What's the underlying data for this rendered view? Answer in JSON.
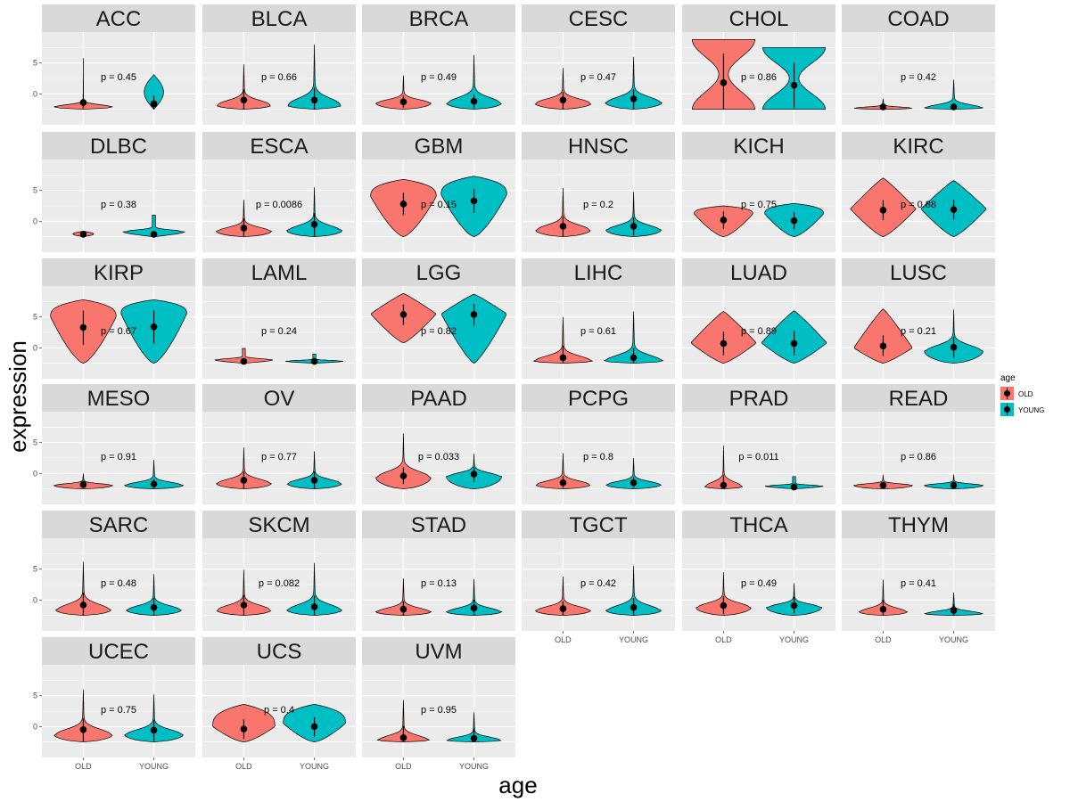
{
  "chart_data": {
    "type": "violin",
    "xlabel": "age",
    "ylabel": "expression",
    "categories": [
      "OLD",
      "YOUNG"
    ],
    "y_ticks": [
      0,
      5
    ],
    "ylim": [
      -5,
      10
    ],
    "legend": {
      "title": "age",
      "position": "right",
      "entries": [
        {
          "label": "OLD",
          "color": "#F8766D"
        },
        {
          "label": "YOUNG",
          "color": "#00BFC4"
        }
      ]
    },
    "colors": {
      "OLD": "#F8766D",
      "YOUNG": "#00BFC4",
      "panel_bg": "#EBEBEB",
      "strip_bg": "#D9D9D9",
      "grid": "#FFFFFF"
    },
    "panels": [
      {
        "name": "ACC",
        "p": "p = 0.45",
        "old": {
          "min": -2.5,
          "max": 5.8,
          "mean": -1.4,
          "sd_low": -2.3,
          "sd_high": 0.0,
          "mode": -2.3,
          "width": 0.85,
          "shape": "spike"
        },
        "young": {
          "min": -2.5,
          "max": 3.1,
          "mean": -1.6,
          "sd_low": -2.4,
          "sd_high": -0.3,
          "mode": -1.6,
          "width": 0.28,
          "shape": "spindle"
        }
      },
      {
        "name": "BLCA",
        "p": "p = 0.66",
        "old": {
          "min": -2.5,
          "max": 4.8,
          "mean": -1.0,
          "sd_low": -2.5,
          "sd_high": 0.7,
          "mode": -1.8,
          "width": 0.8,
          "shape": "skew"
        },
        "young": {
          "min": -2.5,
          "max": 8.0,
          "mean": -1.0,
          "sd_low": -2.5,
          "sd_high": 1.0,
          "mode": -1.8,
          "width": 0.8,
          "shape": "skew"
        }
      },
      {
        "name": "BRCA",
        "p": "p = 0.49",
        "old": {
          "min": -2.5,
          "max": 3.0,
          "mean": -1.3,
          "sd_low": -2.2,
          "sd_high": -0.3,
          "mode": -1.5,
          "width": 0.8,
          "shape": "skew"
        },
        "young": {
          "min": -2.5,
          "max": 6.3,
          "mean": -1.2,
          "sd_low": -2.3,
          "sd_high": -0.1,
          "mode": -1.5,
          "width": 0.8,
          "shape": "skew"
        }
      },
      {
        "name": "CESC",
        "p": "p = 0.47",
        "old": {
          "min": -2.5,
          "max": 4.2,
          "mean": -1.0,
          "sd_low": -2.4,
          "sd_high": 0.3,
          "mode": -1.5,
          "width": 0.82,
          "shape": "skew"
        },
        "young": {
          "min": -2.5,
          "max": 6.0,
          "mean": -0.8,
          "sd_low": -2.4,
          "sd_high": 0.7,
          "mode": -1.4,
          "width": 0.82,
          "shape": "skew"
        }
      },
      {
        "name": "CHOL",
        "p": "p = 0.86",
        "old": {
          "min": -2.5,
          "max": 8.8,
          "mean": 1.8,
          "sd_low": -2.5,
          "sd_high": 6.5,
          "mode": 1.5,
          "width": 0.95,
          "shape": "hourglass"
        },
        "young": {
          "min": -2.5,
          "max": 7.5,
          "mean": 1.4,
          "sd_low": -2.3,
          "sd_high": 5.0,
          "mode": 1.0,
          "width": 0.95,
          "shape": "hourglass"
        }
      },
      {
        "name": "COAD",
        "p": "p = 0.42",
        "old": {
          "min": -2.5,
          "max": -0.8,
          "mean": -2.1,
          "sd_low": -2.4,
          "sd_high": -1.8,
          "mode": -2.3,
          "width": 0.85,
          "shape": "skew"
        },
        "young": {
          "min": -2.5,
          "max": 2.3,
          "mean": -2.1,
          "sd_low": -2.4,
          "sd_high": -1.5,
          "mode": -2.3,
          "width": 0.85,
          "shape": "skew"
        }
      },
      {
        "name": "DLBC",
        "p": "p = 0.38",
        "old": {
          "min": -2.5,
          "max": -1.6,
          "mean": -2.1,
          "sd_low": -2.3,
          "sd_high": -1.9,
          "mode": -2.1,
          "width": 0.3,
          "shape": "spindle"
        },
        "young": {
          "min": -2.5,
          "max": 1.0,
          "mean": -2.1,
          "sd_low": -2.4,
          "sd_high": -1.7,
          "mode": -2.4,
          "width": 0.9,
          "shape": "flat"
        }
      },
      {
        "name": "ESCA",
        "p": "p = 0.0086",
        "old": {
          "min": -2.5,
          "max": 3.5,
          "mean": -1.1,
          "sd_low": -2.4,
          "sd_high": 0.5,
          "mode": -1.6,
          "width": 0.8,
          "shape": "skew"
        },
        "young": {
          "min": -2.5,
          "max": 5.5,
          "mean": -0.5,
          "sd_low": -2.4,
          "sd_high": 1.3,
          "mode": -1.5,
          "width": 0.8,
          "shape": "skew"
        }
      },
      {
        "name": "GBM",
        "p": "p = 0.15",
        "old": {
          "min": -2.5,
          "max": 6.8,
          "mean": 2.8,
          "sd_low": 1.0,
          "sd_high": 4.6,
          "mode": 4.0,
          "width": 0.95,
          "shape": "top"
        },
        "young": {
          "min": -2.5,
          "max": 7.3,
          "mean": 3.3,
          "sd_low": 1.4,
          "sd_high": 5.3,
          "mode": 4.3,
          "width": 0.95,
          "shape": "top"
        }
      },
      {
        "name": "HNSC",
        "p": "p = 0.2",
        "old": {
          "min": -2.5,
          "max": 5.4,
          "mean": -0.8,
          "sd_low": -2.4,
          "sd_high": 0.8,
          "mode": -1.4,
          "width": 0.8,
          "shape": "skew"
        },
        "young": {
          "min": -2.5,
          "max": 4.8,
          "mean": -0.8,
          "sd_low": -2.3,
          "sd_high": 0.6,
          "mode": -1.4,
          "width": 0.8,
          "shape": "skew"
        }
      },
      {
        "name": "KICH",
        "p": "p = 0.75",
        "old": {
          "min": -2.5,
          "max": 2.5,
          "mean": 0.2,
          "sd_low": -1.2,
          "sd_high": 1.6,
          "mode": 1.2,
          "width": 0.85,
          "shape": "top"
        },
        "young": {
          "min": -2.5,
          "max": 2.9,
          "mean": 0.1,
          "sd_low": -1.3,
          "sd_high": 1.5,
          "mode": 1.2,
          "width": 0.85,
          "shape": "top"
        }
      },
      {
        "name": "KIRC",
        "p": "p = 0.88",
        "old": {
          "min": -2.5,
          "max": 7.0,
          "mean": 1.8,
          "sd_low": 0.2,
          "sd_high": 3.4,
          "mode": 2.0,
          "width": 0.95,
          "shape": "diamond"
        },
        "young": {
          "min": -2.5,
          "max": 6.6,
          "mean": 1.9,
          "sd_low": 0.3,
          "sd_high": 3.5,
          "mode": 2.0,
          "width": 0.95,
          "shape": "diamond"
        }
      },
      {
        "name": "KIRP",
        "p": "p = 0.67",
        "old": {
          "min": -2.5,
          "max": 7.8,
          "mean": 3.3,
          "sd_low": 0.5,
          "sd_high": 6.0,
          "mode": 5.0,
          "width": 0.95,
          "shape": "top"
        },
        "young": {
          "min": -2.5,
          "max": 7.8,
          "mean": 3.4,
          "sd_low": 0.7,
          "sd_high": 6.1,
          "mode": 5.5,
          "width": 0.95,
          "shape": "top"
        }
      },
      {
        "name": "LAML",
        "p": "p = 0.24",
        "old": {
          "min": -2.5,
          "max": -0.1,
          "mean": -2.2,
          "sd_low": -2.4,
          "sd_high": -1.8,
          "mode": -2.3,
          "width": 0.85,
          "shape": "flat"
        },
        "young": {
          "min": -2.5,
          "max": -1.0,
          "mean": -2.2,
          "sd_low": -2.4,
          "sd_high": -1.9,
          "mode": -2.3,
          "width": 0.85,
          "shape": "flat"
        }
      },
      {
        "name": "LGG",
        "p": "p = 0.82",
        "old": {
          "min": 0.8,
          "max": 8.8,
          "mean": 5.4,
          "sd_low": 3.7,
          "sd_high": 7.0,
          "mode": 5.5,
          "width": 0.95,
          "shape": "diamond"
        },
        "young": {
          "min": -2.5,
          "max": 8.7,
          "mean": 5.4,
          "sd_low": 3.6,
          "sd_high": 7.1,
          "mode": 5.5,
          "width": 0.95,
          "shape": "diamond"
        }
      },
      {
        "name": "LIHC",
        "p": "p = 0.61",
        "old": {
          "min": -2.5,
          "max": 5.0,
          "mean": -1.6,
          "sd_low": -2.4,
          "sd_high": 0.3,
          "mode": -2.1,
          "width": 0.85,
          "shape": "skew"
        },
        "young": {
          "min": -2.5,
          "max": 5.9,
          "mean": -1.6,
          "sd_low": -2.4,
          "sd_high": 0.0,
          "mode": -2.1,
          "width": 0.85,
          "shape": "skew"
        }
      },
      {
        "name": "LUAD",
        "p": "p = 0.89",
        "old": {
          "min": -2.5,
          "max": 5.9,
          "mean": 0.7,
          "sd_low": -1.2,
          "sd_high": 2.6,
          "mode": 0.8,
          "width": 0.95,
          "shape": "diamond"
        },
        "young": {
          "min": -2.5,
          "max": 6.0,
          "mean": 0.7,
          "sd_low": -1.2,
          "sd_high": 2.7,
          "mode": 0.8,
          "width": 0.95,
          "shape": "diamond"
        }
      },
      {
        "name": "LUSC",
        "p": "p = 0.21",
        "old": {
          "min": -2.5,
          "max": 6.3,
          "mean": 0.3,
          "sd_low": -1.3,
          "sd_high": 2.0,
          "mode": 0.0,
          "width": 0.85,
          "shape": "diamond"
        },
        "young": {
          "min": -2.5,
          "max": 6.2,
          "mean": 0.1,
          "sd_low": -1.6,
          "sd_high": 1.8,
          "mode": -0.5,
          "width": 0.85,
          "shape": "skew"
        }
      },
      {
        "name": "MESO",
        "p": "p = 0.91",
        "old": {
          "min": -2.5,
          "max": 0.0,
          "mean": -1.8,
          "sd_low": -2.4,
          "sd_high": -1.2,
          "mode": -1.9,
          "width": 0.85,
          "shape": "skew"
        },
        "young": {
          "min": -2.5,
          "max": 2.2,
          "mean": -1.7,
          "sd_low": -2.4,
          "sd_high": -0.9,
          "mode": -1.9,
          "width": 0.85,
          "shape": "skew"
        }
      },
      {
        "name": "OV",
        "p": "p = 0.77",
        "old": {
          "min": -2.5,
          "max": 4.2,
          "mean": -1.1,
          "sd_low": -2.4,
          "sd_high": 0.3,
          "mode": -1.6,
          "width": 0.8,
          "shape": "skew"
        },
        "young": {
          "min": -2.5,
          "max": 3.6,
          "mean": -1.1,
          "sd_low": -2.4,
          "sd_high": 0.3,
          "mode": -1.6,
          "width": 0.8,
          "shape": "skew"
        }
      },
      {
        "name": "PAAD",
        "p": "p = 0.033",
        "old": {
          "min": -2.5,
          "max": 6.5,
          "mean": -0.4,
          "sd_low": -1.7,
          "sd_high": 1.0,
          "mode": -0.6,
          "width": 0.8,
          "shape": "skew"
        },
        "young": {
          "min": -2.5,
          "max": 3.2,
          "mean": -0.1,
          "sd_low": -1.4,
          "sd_high": 1.0,
          "mode": -0.5,
          "width": 0.8,
          "shape": "skew"
        }
      },
      {
        "name": "PCPG",
        "p": "p = 0.8",
        "old": {
          "min": -2.5,
          "max": 3.3,
          "mean": -1.5,
          "sd_low": -2.3,
          "sd_high": -0.4,
          "mode": -1.8,
          "width": 0.8,
          "shape": "skew"
        },
        "young": {
          "min": -2.5,
          "max": 2.5,
          "mean": -1.5,
          "sd_low": -2.3,
          "sd_high": -0.6,
          "mode": -1.8,
          "width": 0.8,
          "shape": "skew"
        }
      },
      {
        "name": "PRAD",
        "p": "p = 0.011",
        "old": {
          "min": -2.5,
          "max": 4.5,
          "mean": -1.9,
          "sd_low": -2.4,
          "sd_high": -0.3,
          "mode": -2.1,
          "width": 0.55,
          "shape": "skew"
        },
        "young": {
          "min": -2.5,
          "max": -0.5,
          "mean": -2.2,
          "sd_low": -2.4,
          "sd_high": -1.6,
          "mode": -2.3,
          "width": 0.85,
          "shape": "flat"
        }
      },
      {
        "name": "READ",
        "p": "p = 0.86",
        "old": {
          "min": -2.5,
          "max": -0.2,
          "mean": -1.9,
          "sd_low": -2.4,
          "sd_high": -1.4,
          "mode": -1.9,
          "width": 0.85,
          "shape": "skew"
        },
        "young": {
          "min": -2.5,
          "max": -0.2,
          "mean": -1.9,
          "sd_low": -2.4,
          "sd_high": -1.4,
          "mode": -1.9,
          "width": 0.85,
          "shape": "skew"
        }
      },
      {
        "name": "SARC",
        "p": "p = 0.48",
        "old": {
          "min": -2.5,
          "max": 6.2,
          "mean": -0.8,
          "sd_low": -2.4,
          "sd_high": 1.2,
          "mode": -1.6,
          "width": 0.8,
          "shape": "skew"
        },
        "young": {
          "min": -2.5,
          "max": 4.2,
          "mean": -1.2,
          "sd_low": -2.4,
          "sd_high": 0.3,
          "mode": -1.6,
          "width": 0.8,
          "shape": "skew"
        }
      },
      {
        "name": "SKCM",
        "p": "p = 0.082",
        "old": {
          "min": -2.5,
          "max": 4.9,
          "mean": -0.8,
          "sd_low": -2.4,
          "sd_high": 0.8,
          "mode": -1.6,
          "width": 0.8,
          "shape": "skew"
        },
        "young": {
          "min": -2.5,
          "max": 6.0,
          "mean": -1.1,
          "sd_low": -2.4,
          "sd_high": 0.7,
          "mode": -1.6,
          "width": 0.8,
          "shape": "skew"
        }
      },
      {
        "name": "STAD",
        "p": "p = 0.13",
        "old": {
          "min": -2.5,
          "max": 3.5,
          "mean": -1.5,
          "sd_low": -2.4,
          "sd_high": -0.2,
          "mode": -1.9,
          "width": 0.8,
          "shape": "skew"
        },
        "young": {
          "min": -2.5,
          "max": 3.4,
          "mean": -1.3,
          "sd_low": -2.4,
          "sd_high": 0.0,
          "mode": -1.9,
          "width": 0.8,
          "shape": "skew"
        }
      },
      {
        "name": "TGCT",
        "p": "p = 0.42",
        "old": {
          "min": -2.5,
          "max": 3.8,
          "mean": -1.4,
          "sd_low": -2.4,
          "sd_high": -0.2,
          "mode": -1.7,
          "width": 0.8,
          "shape": "skew"
        },
        "young": {
          "min": -2.5,
          "max": 5.5,
          "mean": -1.2,
          "sd_low": -2.4,
          "sd_high": 0.3,
          "mode": -1.7,
          "width": 0.8,
          "shape": "skew"
        }
      },
      {
        "name": "THCA",
        "p": "p = 0.49",
        "old": {
          "min": -2.5,
          "max": 4.5,
          "mean": -0.9,
          "sd_low": -2.3,
          "sd_high": 0.6,
          "mode": -1.2,
          "width": 0.8,
          "shape": "skew"
        },
        "young": {
          "min": -2.5,
          "max": 2.7,
          "mean": -0.9,
          "sd_low": -2.2,
          "sd_high": 0.5,
          "mode": -1.2,
          "width": 0.8,
          "shape": "skew"
        }
      },
      {
        "name": "THYM",
        "p": "p = 0.41",
        "old": {
          "min": -2.5,
          "max": 3.3,
          "mean": -1.5,
          "sd_low": -2.4,
          "sd_high": 0.0,
          "mode": -1.9,
          "width": 0.7,
          "shape": "skew"
        },
        "young": {
          "min": -2.5,
          "max": 1.2,
          "mean": -1.7,
          "sd_low": -2.4,
          "sd_high": -0.7,
          "mode": -2.2,
          "width": 0.85,
          "shape": "skew"
        }
      },
      {
        "name": "UCEC",
        "p": "p = 0.75",
        "old": {
          "min": -2.5,
          "max": 6.0,
          "mean": -0.5,
          "sd_low": -2.4,
          "sd_high": 1.3,
          "mode": -1.3,
          "width": 0.85,
          "shape": "skew"
        },
        "young": {
          "min": -2.5,
          "max": 5.2,
          "mean": -0.6,
          "sd_low": -2.3,
          "sd_high": 1.0,
          "mode": -1.3,
          "width": 0.85,
          "shape": "skew"
        }
      },
      {
        "name": "UCS",
        "p": "p = 0.4",
        "old": {
          "min": -2.5,
          "max": 3.6,
          "mean": -0.4,
          "sd_low": -2.0,
          "sd_high": 1.2,
          "mode": 0.0,
          "width": 0.9,
          "shape": "top"
        },
        "young": {
          "min": -2.5,
          "max": 3.6,
          "mean": 0.0,
          "sd_low": -1.6,
          "sd_high": 1.5,
          "mode": 0.5,
          "width": 0.9,
          "shape": "top"
        }
      },
      {
        "name": "UVM",
        "p": "p = 0.95",
        "old": {
          "min": -2.5,
          "max": 4.3,
          "mean": -1.8,
          "sd_low": -2.4,
          "sd_high": 0.1,
          "mode": -2.2,
          "width": 0.75,
          "shape": "skew"
        },
        "young": {
          "min": -2.5,
          "max": 2.3,
          "mean": -1.9,
          "sd_low": -2.4,
          "sd_high": -0.3,
          "mode": -2.2,
          "width": 0.8,
          "shape": "skew"
        }
      }
    ]
  }
}
